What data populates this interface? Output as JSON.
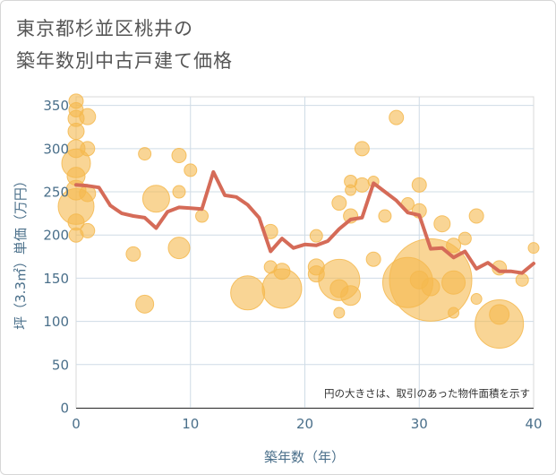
{
  "chart_data": {
    "type": "scatter",
    "title": [
      "東京都杉並区桃井の",
      "築年数別中古戸建て価格"
    ],
    "xlabel": "築年数（年）",
    "ylabel": "坪（3.3㎡）単価（万円）",
    "xlim": [
      0,
      40
    ],
    "ylim": [
      0,
      360
    ],
    "xticks": [
      0,
      10,
      20,
      30,
      40
    ],
    "yticks": [
      0,
      50,
      100,
      150,
      200,
      250,
      300,
      350
    ],
    "grid": true,
    "annotation": "円の大きさは、取引のあった物件面積を示す",
    "colors": {
      "bubble": "#f5b94f",
      "line": "#d56b58",
      "axis_text": "#4a6f8a"
    },
    "bubbles": [
      {
        "x": 0,
        "y": 355,
        "size": 8
      },
      {
        "x": 0,
        "y": 345,
        "size": 8
      },
      {
        "x": 0,
        "y": 335,
        "size": 9
      },
      {
        "x": 0,
        "y": 320,
        "size": 9
      },
      {
        "x": 0,
        "y": 300,
        "size": 10
      },
      {
        "x": 0,
        "y": 283,
        "size": 16
      },
      {
        "x": 0,
        "y": 268,
        "size": 10
      },
      {
        "x": 0,
        "y": 252,
        "size": 11
      },
      {
        "x": 0,
        "y": 233,
        "size": 20
      },
      {
        "x": 0,
        "y": 215,
        "size": 9
      },
      {
        "x": 0,
        "y": 200,
        "size": 8
      },
      {
        "x": 1,
        "y": 337,
        "size": 9
      },
      {
        "x": 1,
        "y": 300,
        "size": 8
      },
      {
        "x": 1,
        "y": 248,
        "size": 9
      },
      {
        "x": 1,
        "y": 205,
        "size": 8
      },
      {
        "x": 5,
        "y": 178,
        "size": 8
      },
      {
        "x": 6,
        "y": 294,
        "size": 7
      },
      {
        "x": 6,
        "y": 120,
        "size": 10
      },
      {
        "x": 7,
        "y": 242,
        "size": 15
      },
      {
        "x": 9,
        "y": 292,
        "size": 8
      },
      {
        "x": 9,
        "y": 250,
        "size": 7
      },
      {
        "x": 9,
        "y": 185,
        "size": 12
      },
      {
        "x": 10,
        "y": 275,
        "size": 7
      },
      {
        "x": 11,
        "y": 222,
        "size": 7
      },
      {
        "x": 15,
        "y": 133,
        "size": 19
      },
      {
        "x": 17,
        "y": 204,
        "size": 8
      },
      {
        "x": 17,
        "y": 163,
        "size": 7
      },
      {
        "x": 18,
        "y": 158,
        "size": 9
      },
      {
        "x": 18,
        "y": 138,
        "size": 22
      },
      {
        "x": 21,
        "y": 199,
        "size": 7
      },
      {
        "x": 21,
        "y": 163,
        "size": 9
      },
      {
        "x": 21,
        "y": 155,
        "size": 9
      },
      {
        "x": 23,
        "y": 237,
        "size": 8
      },
      {
        "x": 23,
        "y": 148,
        "size": 23
      },
      {
        "x": 23,
        "y": 138,
        "size": 10
      },
      {
        "x": 23,
        "y": 110,
        "size": 6
      },
      {
        "x": 24,
        "y": 262,
        "size": 7
      },
      {
        "x": 24,
        "y": 252,
        "size": 6
      },
      {
        "x": 24,
        "y": 222,
        "size": 8
      },
      {
        "x": 24,
        "y": 130,
        "size": 11
      },
      {
        "x": 25,
        "y": 300,
        "size": 8
      },
      {
        "x": 25,
        "y": 258,
        "size": 8
      },
      {
        "x": 26,
        "y": 262,
        "size": 6
      },
      {
        "x": 26,
        "y": 172,
        "size": 8
      },
      {
        "x": 27,
        "y": 222,
        "size": 7
      },
      {
        "x": 28,
        "y": 336,
        "size": 8
      },
      {
        "x": 29,
        "y": 236,
        "size": 7
      },
      {
        "x": 29,
        "y": 145,
        "size": 28
      },
      {
        "x": 30,
        "y": 258,
        "size": 8
      },
      {
        "x": 30,
        "y": 228,
        "size": 8
      },
      {
        "x": 30,
        "y": 148,
        "size": 10
      },
      {
        "x": 31,
        "y": 148,
        "size": 46
      },
      {
        "x": 31,
        "y": 140,
        "size": 10
      },
      {
        "x": 32,
        "y": 213,
        "size": 9
      },
      {
        "x": 33,
        "y": 188,
        "size": 8
      },
      {
        "x": 33,
        "y": 145,
        "size": 13
      },
      {
        "x": 33,
        "y": 110,
        "size": 6
      },
      {
        "x": 34,
        "y": 196,
        "size": 7
      },
      {
        "x": 35,
        "y": 222,
        "size": 8
      },
      {
        "x": 35,
        "y": 126,
        "size": 6
      },
      {
        "x": 37,
        "y": 162,
        "size": 8
      },
      {
        "x": 37,
        "y": 108,
        "size": 11
      },
      {
        "x": 37,
        "y": 97,
        "size": 27
      },
      {
        "x": 39,
        "y": 148,
        "size": 7
      },
      {
        "x": 40,
        "y": 185,
        "size": 6
      }
    ],
    "series": [
      {
        "values": [
          [
            0,
            258
          ],
          [
            1,
            257
          ],
          [
            2,
            255
          ],
          [
            3,
            234
          ],
          [
            4,
            225
          ],
          [
            5,
            222
          ],
          [
            6,
            220
          ],
          [
            7,
            208
          ],
          [
            8,
            227
          ],
          [
            9,
            232
          ],
          [
            10,
            231
          ],
          [
            11,
            230
          ],
          [
            12,
            273
          ],
          [
            13,
            246
          ],
          [
            14,
            244
          ],
          [
            15,
            235
          ],
          [
            16,
            220
          ],
          [
            17,
            181
          ],
          [
            18,
            196
          ],
          [
            19,
            185
          ],
          [
            20,
            189
          ],
          [
            21,
            188
          ],
          [
            22,
            193
          ],
          [
            23,
            207
          ],
          [
            24,
            218
          ],
          [
            25,
            220
          ],
          [
            26,
            260
          ],
          [
            27,
            250
          ],
          [
            28,
            240
          ],
          [
            29,
            226
          ],
          [
            30,
            223
          ],
          [
            31,
            184
          ],
          [
            32,
            185
          ],
          [
            33,
            174
          ],
          [
            34,
            181
          ],
          [
            35,
            161
          ],
          [
            36,
            168
          ],
          [
            37,
            158
          ],
          [
            38,
            158
          ],
          [
            39,
            156
          ],
          [
            40,
            167
          ]
        ]
      }
    ]
  }
}
